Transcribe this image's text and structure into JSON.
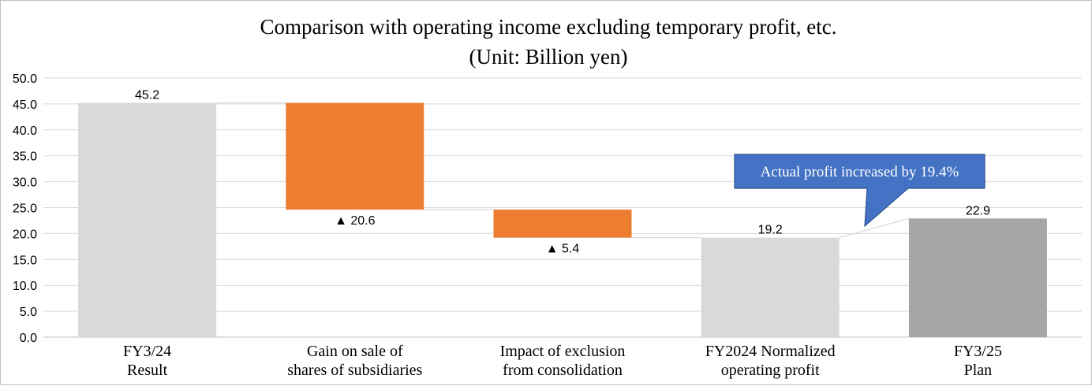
{
  "chart_data": {
    "type": "bar",
    "subtype": "waterfall",
    "title": "Comparison with operating income excluding temporary profit, etc.",
    "subtitle": "(Unit: Billion yen)",
    "ylim": [
      0,
      50
    ],
    "yticks": [
      "50.0",
      "45.0",
      "40.0",
      "35.0",
      "30.0",
      "25.0",
      "20.0",
      "15.0",
      "10.0",
      "5.0",
      "0.0"
    ],
    "grid": true,
    "categories": [
      [
        "FY3/24",
        "Result"
      ],
      [
        "Gain on sale of",
        "shares of subsidiaries"
      ],
      [
        "Impact of exclusion",
        "from consolidation"
      ],
      [
        "FY2024 Normalized",
        "operating profit"
      ],
      [
        "FY3/25",
        "Plan"
      ]
    ],
    "bars": [
      {
        "kind": "total",
        "base": 0,
        "value": 45.2,
        "label": "45.2",
        "color": "#d9d9d9"
      },
      {
        "kind": "decrease",
        "base": 24.6,
        "value": 20.6,
        "label": "▲ 20.6",
        "color": "#ed7d31"
      },
      {
        "kind": "decrease",
        "base": 19.2,
        "value": 5.4,
        "label": "▲ 5.4",
        "color": "#ed7d31"
      },
      {
        "kind": "total",
        "base": 0,
        "value": 19.2,
        "label": "19.2",
        "color": "#d9d9d9"
      },
      {
        "kind": "total",
        "base": 0,
        "value": 22.9,
        "label": "22.9",
        "color": "#a6a6a6"
      }
    ],
    "callout": {
      "text": "Actual profit increased by 19.4%",
      "fill": "#4472c4",
      "stroke": "#2f528f"
    }
  },
  "colors": {
    "grid": "#d9d9d9",
    "connector": "#d9d9d9",
    "axis": "#bfbfbf"
  }
}
